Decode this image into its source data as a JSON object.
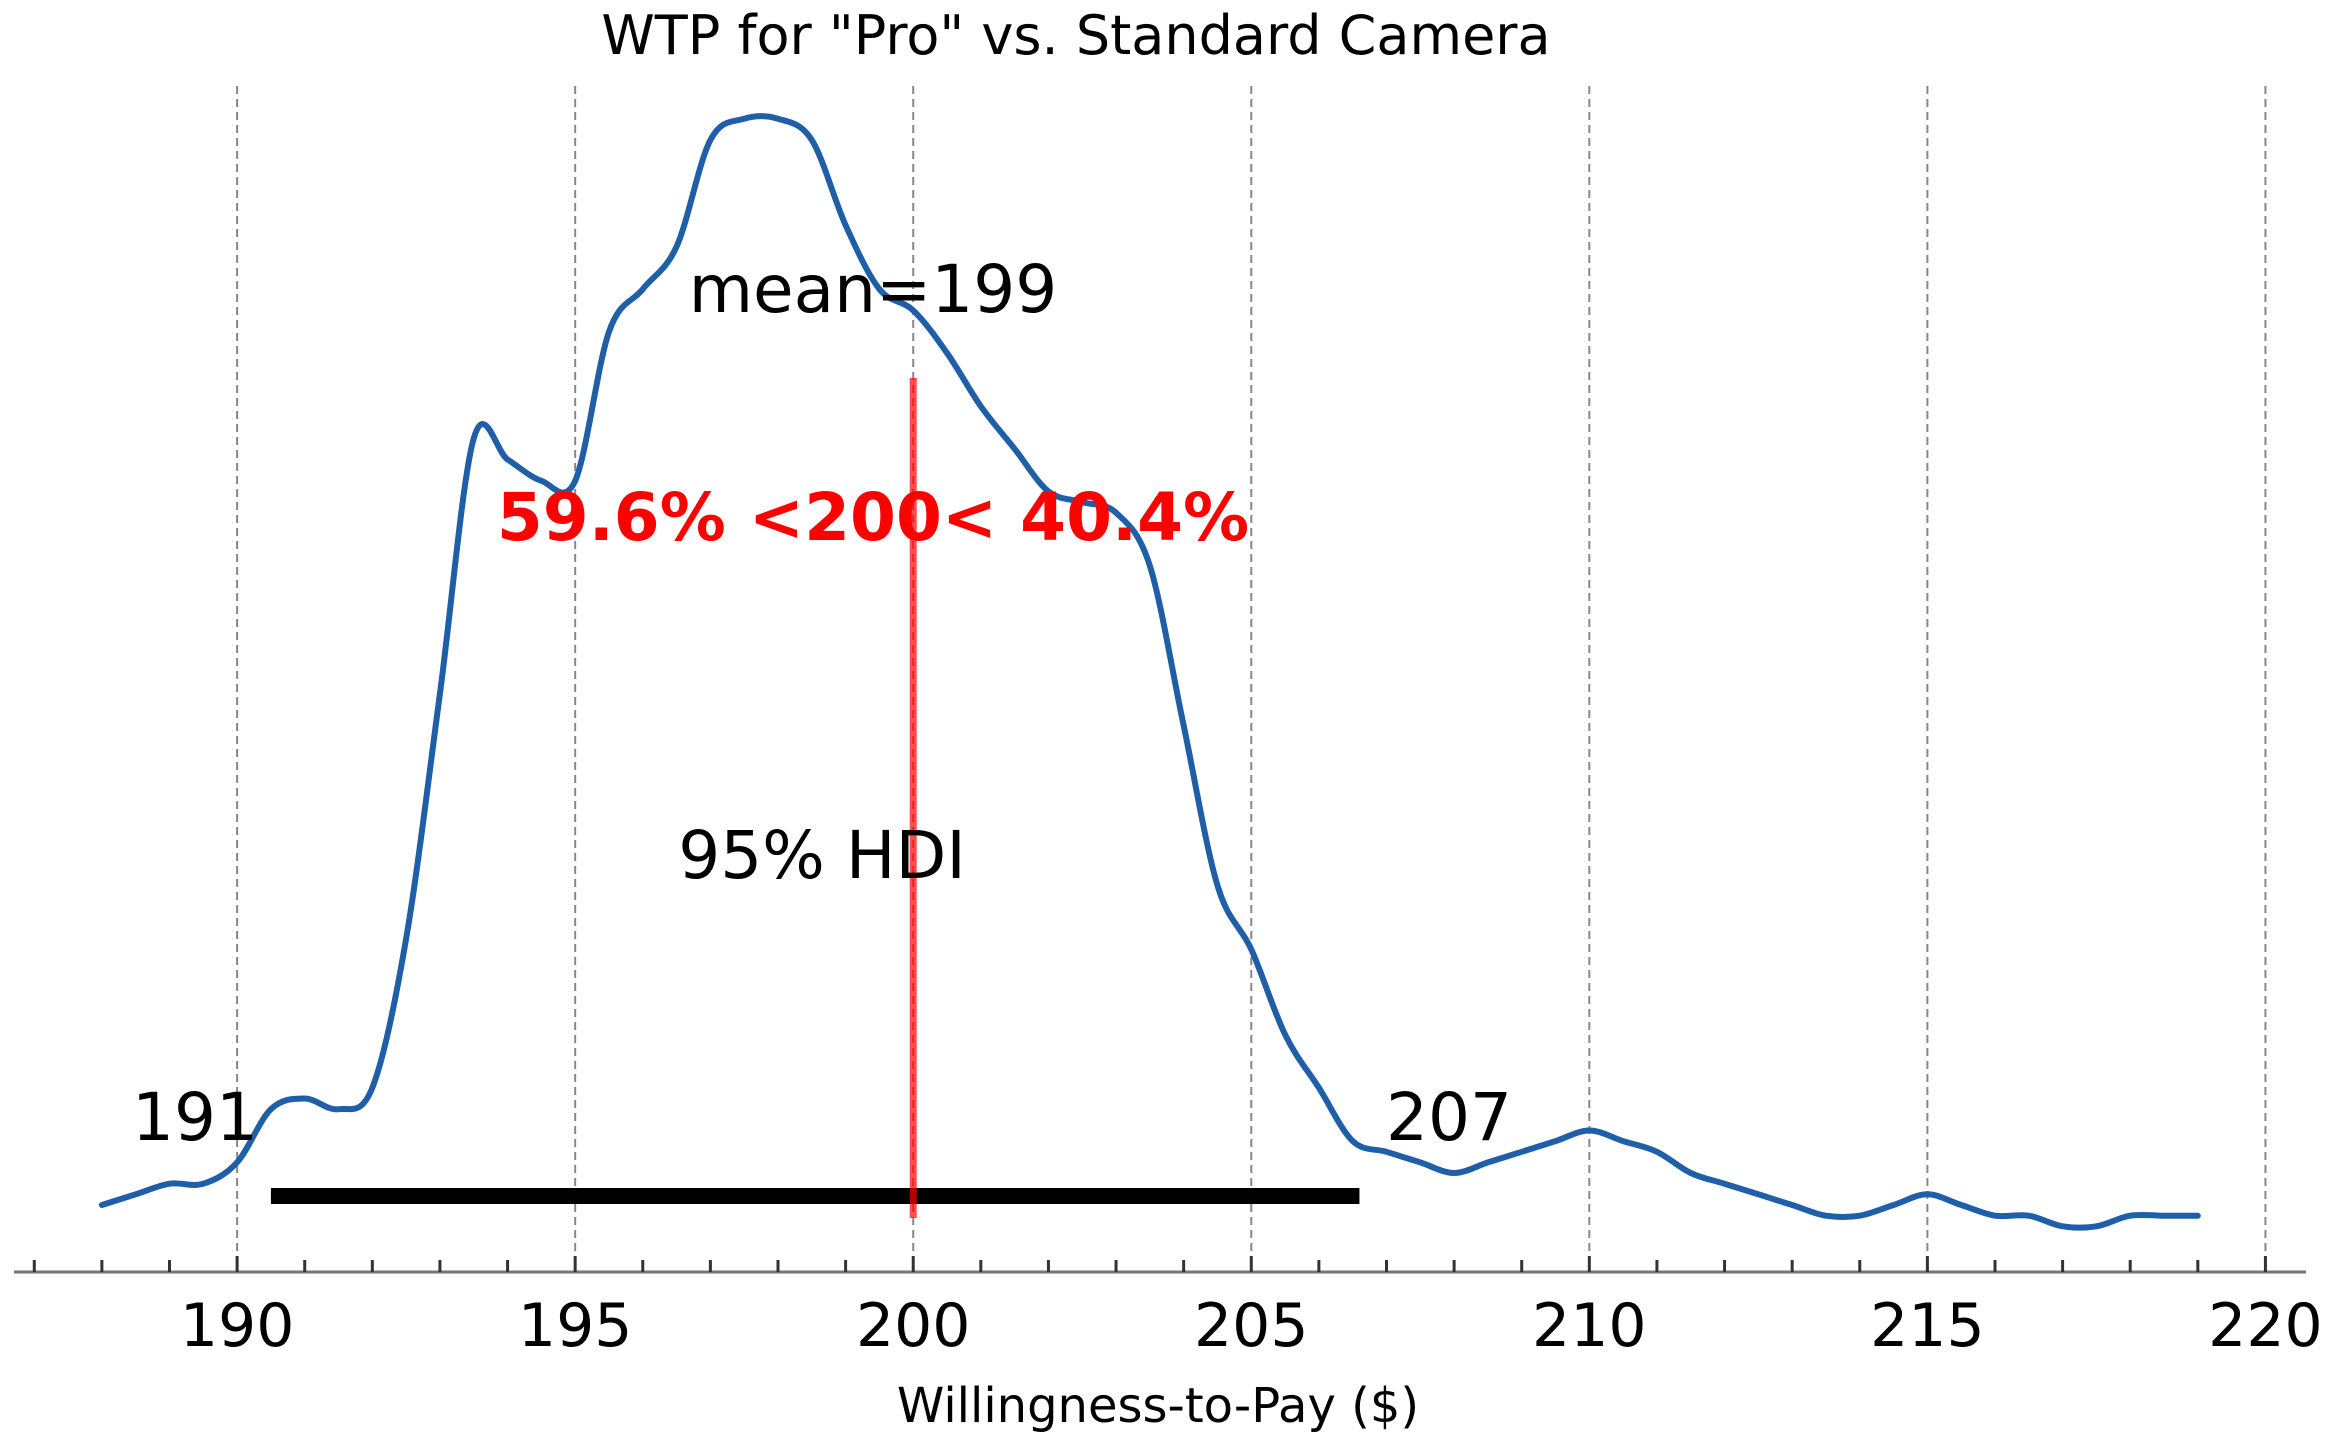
{
  "chart_data": {
    "type": "area",
    "title": "WTP for \"Pro\" vs. Standard Camera",
    "xlabel": "Willingness-to-Pay ($)",
    "ylabel": "",
    "xlim": [
      186.7,
      220.6
    ],
    "ylim": [
      0,
      1
    ],
    "grid": "vertical-dashed",
    "x_major_ticks": [
      190,
      195,
      200,
      205,
      210,
      215,
      220
    ],
    "x_major_tick_labels": [
      "190",
      "195",
      "200",
      "205",
      "210",
      "215",
      "220"
    ],
    "x_minor_tick_step": 1,
    "series": [
      {
        "name": "",
        "color": "#1f5fa8",
        "x": [
          188,
          188.5,
          189,
          189.5,
          190,
          190.5,
          191,
          191.5,
          192,
          192.5,
          193,
          193.5,
          194,
          194.5,
          195,
          195.5,
          196,
          196.5,
          197,
          197.5,
          198,
          198.5,
          199,
          199.5,
          200,
          200.5,
          201,
          201.5,
          202,
          202.5,
          203,
          203.5,
          204,
          204.5,
          205,
          205.5,
          206,
          206.5,
          207,
          207.5,
          208,
          208.5,
          209,
          209.5,
          210,
          210.5,
          211,
          211.5,
          212,
          212.5,
          213,
          213.5,
          214,
          214.5,
          215,
          215.5,
          216,
          216.5,
          217,
          217.5,
          218,
          218.5,
          219
        ],
        "y": [
          0.0,
          0.01,
          0.02,
          0.02,
          0.04,
          0.09,
          0.1,
          0.09,
          0.11,
          0.25,
          0.48,
          0.72,
          0.7,
          0.68,
          0.68,
          0.82,
          0.86,
          0.9,
          1.0,
          1.02,
          1.02,
          1.0,
          0.92,
          0.86,
          0.84,
          0.8,
          0.75,
          0.71,
          0.67,
          0.66,
          0.65,
          0.6,
          0.45,
          0.3,
          0.24,
          0.16,
          0.11,
          0.06,
          0.05,
          0.04,
          0.03,
          0.04,
          0.05,
          0.06,
          0.07,
          0.06,
          0.05,
          0.03,
          0.02,
          0.01,
          0.0,
          -0.01,
          -0.01,
          0.0,
          0.01,
          0.0,
          -0.01,
          -0.01,
          -0.02,
          -0.02,
          -0.01,
          -0.01,
          -0.01
        ]
      }
    ],
    "mean_label": "mean=199",
    "reference": {
      "value": 200,
      "label": "59.6% <200< 40.4%",
      "color": "#ff0000"
    },
    "hdi": {
      "lower": 190.5,
      "upper": 206.6,
      "lower_label": "191",
      "upper_label": "207",
      "label": "95% HDI",
      "color": "#000000"
    }
  }
}
